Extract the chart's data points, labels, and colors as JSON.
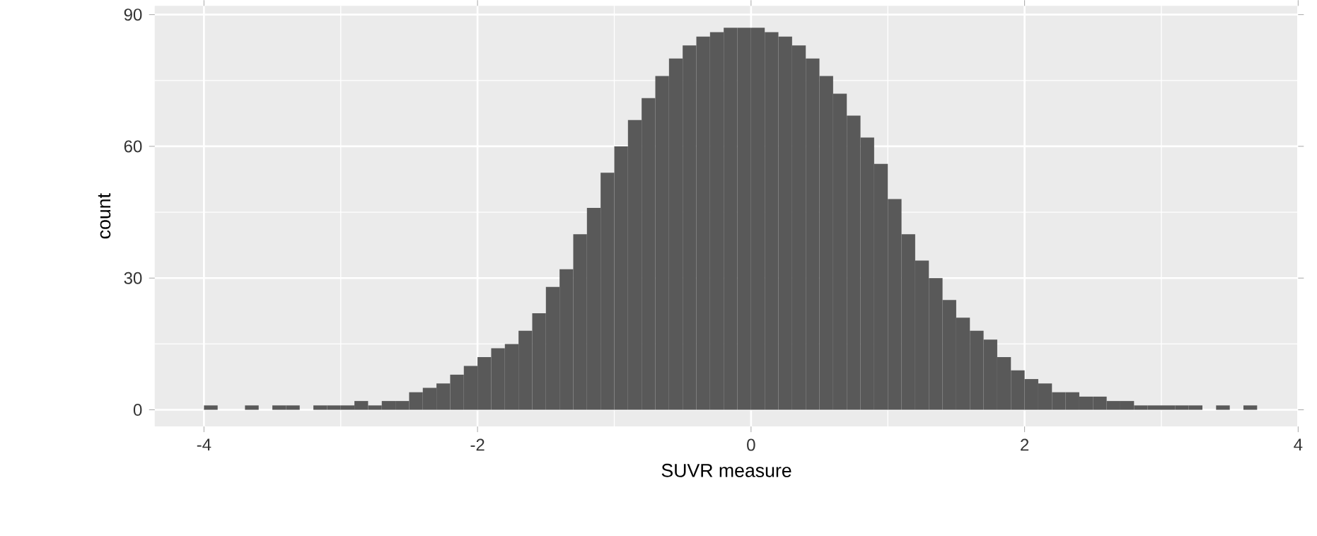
{
  "chart_data": {
    "type": "histogram",
    "xlabel": "SUVR measure",
    "ylabel": "count",
    "color": "#595959",
    "bins": [
      -4.0,
      -3.9,
      -3.8,
      -3.7,
      -3.6,
      -3.5,
      -3.4,
      -3.3,
      -3.2,
      -3.1,
      -3.0,
      -2.9,
      -2.8,
      -2.7,
      -2.6,
      -2.5,
      -2.4,
      -2.3,
      -2.2,
      -2.1,
      -2.0,
      -1.9,
      -1.8,
      -1.7,
      -1.6,
      -1.5,
      -1.4,
      -1.3,
      -1.2,
      -1.1,
      -1.0,
      -0.9,
      -0.8,
      -0.7,
      -0.6,
      -0.5,
      -0.4,
      -0.3,
      -0.2,
      -0.1,
      0.0,
      0.1,
      0.2,
      0.3,
      0.4,
      0.5,
      0.6,
      0.7,
      0.8,
      0.9,
      1.0,
      1.1,
      1.2,
      1.3,
      1.4,
      1.5,
      1.6,
      1.7,
      1.8,
      1.9,
      2.0,
      2.1,
      2.2,
      2.3,
      2.4,
      2.5,
      2.6,
      2.7,
      2.8,
      2.9,
      3.0,
      3.1,
      3.2,
      3.3,
      3.4,
      3.5,
      3.6,
      3.7
    ],
    "values": [
      1,
      0,
      0,
      1,
      0,
      1,
      1,
      0,
      1,
      1,
      1,
      2,
      1,
      2,
      2,
      4,
      5,
      6,
      8,
      10,
      12,
      14,
      15,
      18,
      22,
      28,
      32,
      40,
      46,
      54,
      60,
      66,
      71,
      76,
      80,
      83,
      85,
      86,
      87,
      87,
      87,
      86,
      85,
      83,
      80,
      76,
      72,
      67,
      62,
      56,
      48,
      40,
      34,
      30,
      25,
      21,
      18,
      16,
      12,
      9,
      7,
      6,
      4,
      4,
      3,
      3,
      2,
      2,
      1,
      1,
      1,
      1,
      1,
      0,
      1,
      0,
      1
    ],
    "xlim": [
      -4.36,
      4.0
    ],
    "ylim": [
      -3.8,
      92
    ],
    "xticks": [
      -4,
      -2,
      0,
      2,
      4
    ],
    "yticks": [
      0,
      30,
      60,
      90
    ],
    "grid": true
  }
}
